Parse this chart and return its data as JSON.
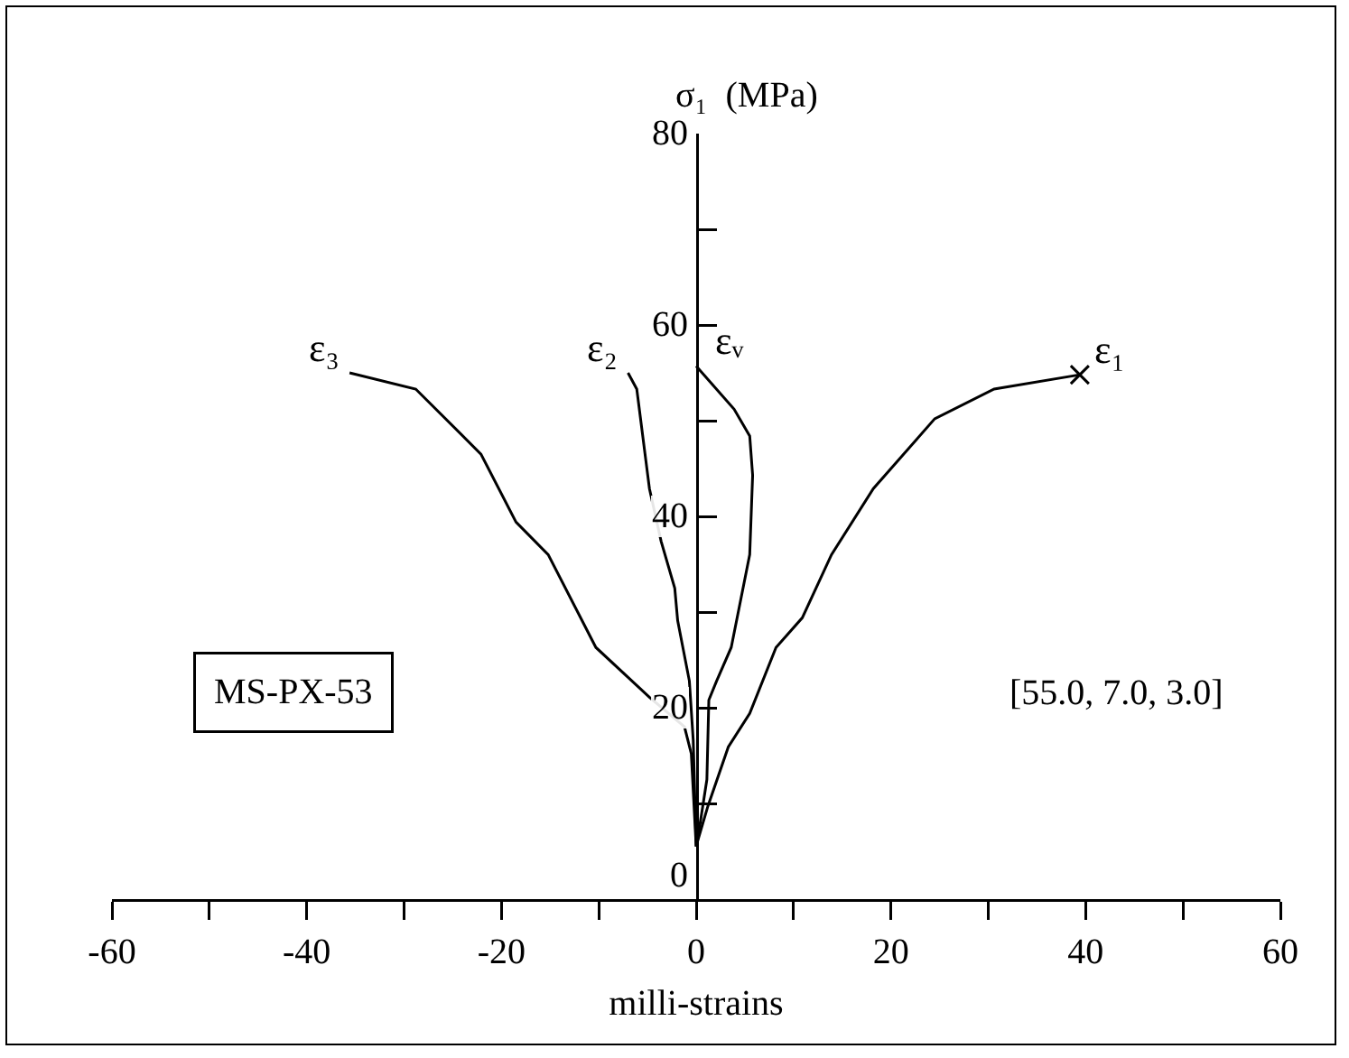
{
  "chart_data": {
    "type": "line",
    "xlabel": "milli-strains",
    "ylabel": "σ₁  (MPa)",
    "xlim": [
      -60,
      60
    ],
    "ylim": [
      0,
      80
    ],
    "xticks": [
      -60,
      {
        "value": -50,
        "label": null
      },
      -40,
      {
        "value": -30,
        "label": null
      },
      -20,
      {
        "value": -10,
        "label": null
      },
      0,
      {
        "value": 10,
        "label": null
      },
      20,
      {
        "value": 30,
        "label": null
      },
      40,
      {
        "value": 50,
        "label": null
      },
      60
    ],
    "yticks": [
      0,
      {
        "value": 10,
        "label": null
      },
      20,
      {
        "value": 30,
        "label": null
      },
      40,
      {
        "value": 50,
        "label": null
      },
      60,
      {
        "value": 70,
        "label": null
      },
      80
    ],
    "grid": false,
    "legend": false,
    "line_style": "solid",
    "series": [
      {
        "name": "ε₃",
        "color": "#000000",
        "x": [
          0,
          -0.5,
          -1.2,
          -4.8,
          -10.3,
          -15.2,
          -18.5,
          -22.1,
          -28.8,
          -35.6
        ],
        "values": [
          5.5,
          15.2,
          18.0,
          21.1,
          26.3,
          36.0,
          39.4,
          46.5,
          53.3,
          55.0
        ]
      },
      {
        "name": "ε₂",
        "color": "#000000",
        "x": [
          0,
          -0.3,
          -0.7,
          -1.9,
          -2.2,
          -3.6,
          -4.8,
          -6.1,
          -7.0
        ],
        "values": [
          5.5,
          16.6,
          22.8,
          29.1,
          32.5,
          37.4,
          42.9,
          53.3,
          55.0
        ]
      },
      {
        "name": "εᵥ",
        "color": "#000000",
        "x": [
          0.1,
          1.1,
          1.3,
          2.1,
          3.6,
          5.5,
          5.8,
          5.5,
          3.9,
          0
        ],
        "values": [
          5.9,
          12.5,
          20.8,
          22.8,
          26.3,
          36.0,
          44.3,
          48.4,
          51.2,
          55.7
        ]
      },
      {
        "name": "ε₁",
        "color": "#000000",
        "x": [
          0.1,
          1.2,
          3.3,
          5.5,
          8.2,
          10.9,
          13.9,
          18.2,
          24.5,
          30.6,
          39.4
        ],
        "values": [
          5.9,
          9.7,
          15.9,
          19.4,
          26.3,
          29.4,
          36.0,
          42.9,
          50.2,
          53.3,
          54.8
        ]
      }
    ],
    "annotations": [
      "MS-PX-53",
      "[55.0, 7.0, 3.0]"
    ]
  }
}
